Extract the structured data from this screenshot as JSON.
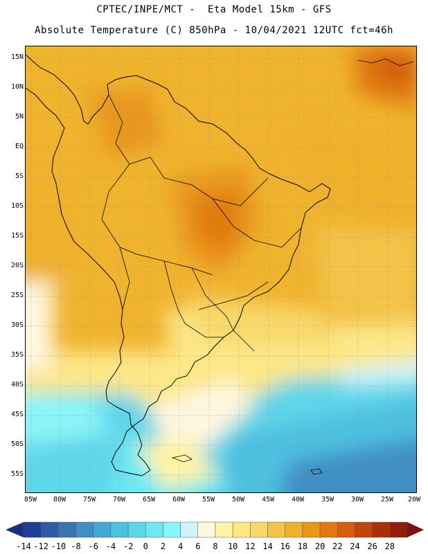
{
  "header": {
    "line1": "CPTEC/INPE/MCT -  Eta Model 15km - GFS",
    "line2": "Absolute Temperature (C) 850hPa - 10/04/2021 12UTC fct=46h"
  },
  "map": {
    "lat_labels": [
      "15N",
      "10N",
      "5N",
      "EQ",
      "5S",
      "10S",
      "15S",
      "20S",
      "25S",
      "30S",
      "35S",
      "40S",
      "45S",
      "50S",
      "55S"
    ],
    "lon_labels": [
      "85W",
      "80W",
      "75W",
      "70W",
      "65W",
      "60W",
      "55W",
      "50W",
      "45W",
      "40W",
      "35W",
      "30W",
      "25W",
      "20W"
    ],
    "coastline_color": "#000000",
    "gridline_style": "dotted gray"
  },
  "colorbar": {
    "labels": [
      "-14",
      "-12",
      "-10",
      "-8",
      "-6",
      "-4",
      "-2",
      "0",
      "2",
      "4",
      "6",
      "8",
      "10",
      "12",
      "14",
      "16",
      "18",
      "20",
      "22",
      "24",
      "26",
      "28"
    ],
    "colors": [
      "#1f3f96",
      "#2f5aa6",
      "#3a74b3",
      "#3f8ec4",
      "#46a7d4",
      "#4ec0e0",
      "#5ed6ea",
      "#6ee8f2",
      "#8af5f8",
      "#cff5fb",
      "#fff6e0",
      "#fff3a6",
      "#fde787",
      "#f9d86b",
      "#f3c44a",
      "#efb12c",
      "#e9961c",
      "#e07a10",
      "#d55e0b",
      "#c04508",
      "#a63108",
      "#8e1f0b"
    ],
    "arrow_low": "#16307a",
    "arrow_high": "#7a0f14"
  }
}
